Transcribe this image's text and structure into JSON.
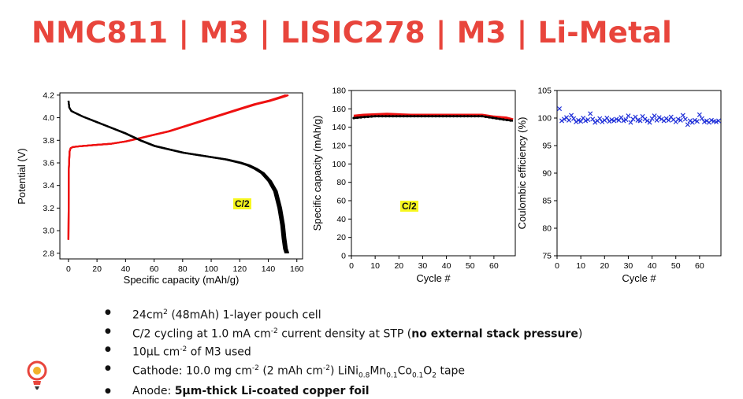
{
  "title": "NMC811 | M3 | LISIC278 | M3 | Li-Metal",
  "charts": {
    "voltage": {
      "xlabel": "Specific capacity (mAh/g)",
      "ylabel": "Potential (V)",
      "annotation": "C/2"
    },
    "capacity": {
      "xlabel": "Cycle #",
      "ylabel": "Specific capacity (mAh/g)",
      "annotation": "C/2"
    },
    "ce": {
      "xlabel": "Cycle #",
      "ylabel": "Coulombic efficiency (%)"
    }
  },
  "bullets": {
    "b1_pre": "24cm",
    "b1_sup": "2",
    "b1_post": " (48mAh) 1-layer pouch cell",
    "b2_pre": "C/2 cycling at 1.0 mA cm",
    "b2_sup": "-2",
    "b2_mid": " current density at STP (",
    "b2_bold": "no external stack pressure",
    "b2_post": ")",
    "b3_pre": "10µL cm",
    "b3_sup": "-2",
    "b3_post": " of M3 used",
    "b4_a": "Cathode: 10.0 mg cm",
    "b4_sup1": "-2",
    "b4_b": " (2 mAh cm",
    "b4_sup2": "-2",
    "b4_c": ") LiNi",
    "b4_sub1": "0.8",
    "b4_d": "Mn",
    "b4_sub2": "0.1",
    "b4_e": "Co",
    "b4_sub3": "0.1",
    "b4_f": "O",
    "b4_sub4": "2",
    "b4_g": " tape",
    "b5_pre": "Anode: ",
    "b5_bold": "5µm-thick Li-coated copper foil"
  },
  "colors": {
    "title": "#e8453c",
    "charge": "#ee1111",
    "discharge": "#000000",
    "ce_marker": "#1f2fd8",
    "highlight": "#f7f71f"
  },
  "chart_data": [
    {
      "type": "line",
      "xlabel": "Specific capacity (mAh/g)",
      "ylabel": "Potential (V)",
      "xlim": [
        -6,
        164
      ],
      "ylim": [
        2.75,
        4.22
      ],
      "xticks": [
        0,
        20,
        40,
        60,
        80,
        100,
        120,
        140,
        160
      ],
      "yticks": [
        2.8,
        3.0,
        3.2,
        3.4,
        3.6,
        3.8,
        4.0,
        4.2
      ],
      "annotation": "C/2",
      "series": [
        {
          "color": "#ee1111",
          "x": [
            0,
            0.3,
            0.8,
            1.5,
            3,
            6,
            10,
            20,
            30,
            40,
            50,
            60,
            70,
            80,
            90,
            100,
            110,
            120,
            130,
            140,
            145,
            150,
            152
          ],
          "y": [
            2.92,
            3.55,
            3.7,
            3.73,
            3.74,
            3.745,
            3.75,
            3.76,
            3.77,
            3.79,
            3.82,
            3.85,
            3.88,
            3.92,
            3.96,
            4.0,
            4.04,
            4.08,
            4.12,
            4.15,
            4.17,
            4.19,
            4.2
          ]
        },
        {
          "color": "#000000",
          "x": [
            0,
            0.6,
            2,
            5,
            10,
            20,
            30,
            40,
            50,
            60,
            70,
            80,
            90,
            100,
            110,
            120,
            125,
            130,
            135,
            140,
            144,
            147,
            149,
            150,
            151,
            152
          ],
          "y": [
            4.15,
            4.09,
            4.06,
            4.04,
            4.01,
            3.96,
            3.91,
            3.86,
            3.8,
            3.75,
            3.72,
            3.69,
            3.67,
            3.65,
            3.63,
            3.6,
            3.58,
            3.55,
            3.51,
            3.44,
            3.35,
            3.2,
            3.05,
            2.93,
            2.84,
            2.8
          ]
        }
      ]
    },
    {
      "type": "scatter",
      "xlabel": "Cycle #",
      "ylabel": "Specific capacity (mAh/g)",
      "xlim": [
        0,
        69
      ],
      "ylim": [
        0,
        180
      ],
      "xticks": [
        0,
        10,
        20,
        30,
        40,
        50,
        60
      ],
      "yticks": [
        0,
        20,
        40,
        60,
        80,
        100,
        120,
        140,
        160,
        180
      ],
      "annotation": "C/2",
      "series": [
        {
          "color": "#ee1111",
          "x": [
            1,
            5,
            10,
            15,
            20,
            25,
            30,
            35,
            40,
            45,
            50,
            55,
            60,
            65,
            68
          ],
          "y": [
            152,
            153,
            153.5,
            154,
            153.5,
            153,
            153,
            153,
            153,
            153,
            153,
            153,
            151,
            150,
            148
          ]
        },
        {
          "color": "#000000",
          "x": [
            1,
            5,
            10,
            15,
            20,
            25,
            30,
            35,
            40,
            45,
            50,
            55,
            60,
            65,
            68
          ],
          "y": [
            150,
            151,
            152,
            152,
            152,
            152,
            152,
            152,
            152,
            152,
            152,
            152,
            150,
            148,
            147
          ]
        }
      ]
    },
    {
      "type": "scatter",
      "xlabel": "Cycle #",
      "ylabel": "Coulombic efficiency (%)",
      "xlim": [
        0,
        69
      ],
      "ylim": [
        75,
        105
      ],
      "xticks": [
        0,
        10,
        20,
        30,
        40,
        50,
        60
      ],
      "yticks": [
        75,
        80,
        85,
        90,
        95,
        100,
        105
      ],
      "series": [
        {
          "color": "#1f2fd8",
          "x": [
            1,
            2,
            3,
            4,
            5,
            6,
            7,
            8,
            9,
            10,
            11,
            12,
            13,
            14,
            15,
            16,
            17,
            18,
            19,
            20,
            21,
            22,
            23,
            24,
            25,
            26,
            27,
            28,
            29,
            30,
            31,
            32,
            33,
            34,
            35,
            36,
            37,
            38,
            39,
            40,
            41,
            42,
            43,
            44,
            45,
            46,
            47,
            48,
            49,
            50,
            51,
            52,
            53,
            54,
            55,
            56,
            57,
            58,
            59,
            60,
            61,
            62,
            63,
            64,
            65,
            66,
            67,
            68
          ],
          "y": [
            101.7,
            99.5,
            99.8,
            100.1,
            99.6,
            100.5,
            99.9,
            99.3,
            99.6,
            99.4,
            100.0,
            99.5,
            99.7,
            100.8,
            99.8,
            99.2,
            99.5,
            99.9,
            99.3,
            99.6,
            100.0,
            99.4,
            99.7,
            99.5,
            99.8,
            99.6,
            100.1,
            99.5,
            99.7,
            100.4,
            99.2,
            99.8,
            100.2,
            99.6,
            99.5,
            100.3,
            99.8,
            99.5,
            99.2,
            99.9,
            100.4,
            99.6,
            100.1,
            99.8,
            99.5,
            99.9,
            99.6,
            100.2,
            99.7,
            99.3,
            99.8,
            99.6,
            100.5,
            99.8,
            98.8,
            99.5,
            99.2,
            99.6,
            99.4,
            100.6,
            99.9,
            99.3,
            99.5,
            99.2,
            99.6,
            99.4,
            99.3,
            99.5
          ]
        }
      ]
    }
  ]
}
